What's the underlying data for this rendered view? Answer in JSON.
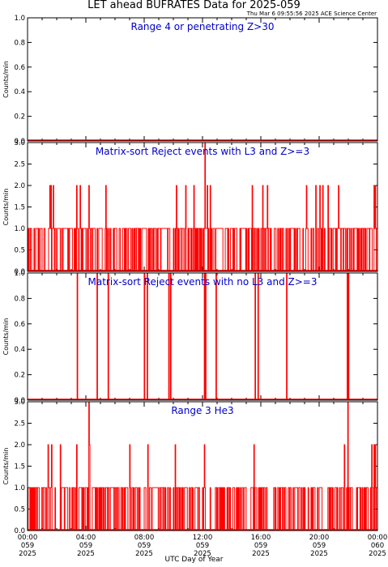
{
  "header": {
    "title": "LET ahead BUFRATES Data for 2025-059",
    "timestamp": "Thu Mar  6 09:55:56 2025 ACE Science Center"
  },
  "colors": {
    "series": "#ff0000",
    "panel_title": "#0000cc",
    "axes": "#000000"
  },
  "chart_data": [
    {
      "type": "line",
      "title": "Range 4 or  penetrating Z>30",
      "ylabel": "Counts/min",
      "ylim": [
        0,
        1.0
      ],
      "yticks": [
        "0.0",
        "0.2",
        "0.4",
        "0.6",
        "0.8",
        "1.0"
      ],
      "events": []
    },
    {
      "type": "line",
      "title": "Matrix-sort Reject events with L3 and Z>=3",
      "ylabel": "Counts/min",
      "ylim": [
        0,
        3.0
      ],
      "yticks": [
        "0.0",
        "0.5",
        "1.0",
        "1.5",
        "2.0",
        "2.5",
        "3.0"
      ],
      "background": {
        "density": 0.55,
        "level": 1
      },
      "events": [
        {
          "t": 1.5,
          "v": 2
        },
        {
          "t": 1.6,
          "v": 2
        },
        {
          "t": 1.75,
          "v": 2
        },
        {
          "t": 3.35,
          "v": 2
        },
        {
          "t": 3.6,
          "v": 2
        },
        {
          "t": 4.2,
          "v": 2
        },
        {
          "t": 5.35,
          "v": 2
        },
        {
          "t": 10.2,
          "v": 2
        },
        {
          "t": 10.85,
          "v": 2
        },
        {
          "t": 11.4,
          "v": 2
        },
        {
          "t": 12.15,
          "v": 3
        },
        {
          "t": 12.3,
          "v": 2
        },
        {
          "t": 12.5,
          "v": 2
        },
        {
          "t": 15.4,
          "v": 2
        },
        {
          "t": 16.1,
          "v": 2
        },
        {
          "t": 16.45,
          "v": 2
        },
        {
          "t": 19.1,
          "v": 2
        },
        {
          "t": 19.75,
          "v": 2
        },
        {
          "t": 20.05,
          "v": 2
        },
        {
          "t": 20.25,
          "v": 2
        },
        {
          "t": 20.6,
          "v": 2
        },
        {
          "t": 21.3,
          "v": 2
        },
        {
          "t": 23.75,
          "v": 2
        },
        {
          "t": 23.85,
          "v": 2
        }
      ]
    },
    {
      "type": "line",
      "title": "Matrix-sort Reject events with no L3 and Z>=3",
      "ylabel": "Counts/min",
      "ylim": [
        0,
        1.0
      ],
      "yticks": [
        "0.0",
        "0.2",
        "0.4",
        "0.6",
        "0.8",
        "1.0"
      ],
      "events": [
        {
          "t": 3.4,
          "v": 1
        },
        {
          "t": 4.75,
          "v": 1
        },
        {
          "t": 5.5,
          "v": 1
        },
        {
          "t": 8.0,
          "v": 1
        },
        {
          "t": 8.2,
          "v": 1
        },
        {
          "t": 9.7,
          "v": 1
        },
        {
          "t": 9.8,
          "v": 1
        },
        {
          "t": 12.1,
          "v": 1
        },
        {
          "t": 12.2,
          "v": 1
        },
        {
          "t": 12.9,
          "v": 1
        },
        {
          "t": 15.6,
          "v": 1
        },
        {
          "t": 15.8,
          "v": 1
        },
        {
          "t": 17.75,
          "v": 1
        },
        {
          "t": 21.9,
          "v": 1
        },
        {
          "t": 22.0,
          "v": 1
        }
      ]
    },
    {
      "type": "line",
      "title": "Range 3 He3",
      "ylabel": "Counts/min",
      "ylim": [
        0,
        3.0
      ],
      "yticks": [
        "0.0",
        "0.5",
        "1.0",
        "1.5",
        "2.0",
        "2.5",
        "3.0"
      ],
      "background": {
        "density": 0.45,
        "level": 1
      },
      "events": [
        {
          "t": 1.4,
          "v": 2
        },
        {
          "t": 1.65,
          "v": 2
        },
        {
          "t": 2.25,
          "v": 2
        },
        {
          "t": 3.35,
          "v": 2
        },
        {
          "t": 4.2,
          "v": 3
        },
        {
          "t": 4.25,
          "v": 2
        },
        {
          "t": 7.0,
          "v": 2
        },
        {
          "t": 8.25,
          "v": 2
        },
        {
          "t": 10.1,
          "v": 2
        },
        {
          "t": 12.1,
          "v": 2
        },
        {
          "t": 15.5,
          "v": 2
        },
        {
          "t": 21.7,
          "v": 2
        },
        {
          "t": 21.95,
          "v": 3
        },
        {
          "t": 23.6,
          "v": 2
        },
        {
          "t": 23.75,
          "v": 2
        },
        {
          "t": 23.85,
          "v": 2
        }
      ]
    }
  ],
  "xaxis": {
    "title": "UTC Day of Year",
    "range_hours": [
      0,
      24
    ],
    "ticks": [
      {
        "time": "00:00",
        "doy": "059",
        "year": "2025"
      },
      {
        "time": "04:00",
        "doy": "059",
        "year": "2025"
      },
      {
        "time": "08:00",
        "doy": "059",
        "year": "2025"
      },
      {
        "time": "12:00",
        "doy": "059",
        "year": "2025"
      },
      {
        "time": "16:00",
        "doy": "059",
        "year": "2025"
      },
      {
        "time": "20:00",
        "doy": "059",
        "year": "2025"
      },
      {
        "time": "00:00",
        "doy": "060",
        "year": "2025"
      }
    ]
  }
}
